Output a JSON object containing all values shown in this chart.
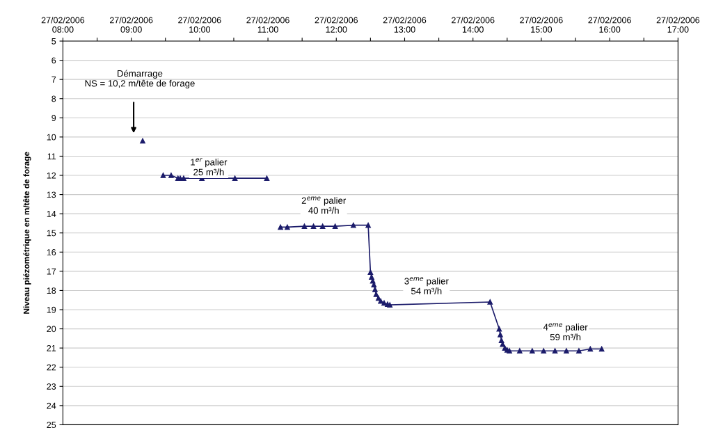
{
  "chart_data": {
    "type": "line",
    "ylabel": "Niveau piézométrique en m/tête de forage",
    "x": [
      "2006-02-27T09:10",
      "2006-02-27T09:20",
      "2006-02-27T09:28",
      "2006-02-27T09:35",
      "2006-02-27T09:41",
      "2006-02-27T09:43",
      "2006-02-27T09:46",
      "2006-02-27T10:02",
      "2006-02-27T10:31",
      "2006-02-27T10:59",
      "2006-02-27T11:05",
      "2006-02-27T11:11",
      "2006-02-27T11:17",
      "2006-02-27T11:32",
      "2006-02-27T11:40",
      "2006-02-27T11:48",
      "2006-02-27T11:59",
      "2006-02-27T12:15",
      "2006-02-27T12:28",
      "2006-02-27T12:30",
      "2006-02-27T12:31",
      "2006-02-27T12:32",
      "2006-02-27T12:33",
      "2006-02-27T12:34",
      "2006-02-27T12:35",
      "2006-02-27T12:37",
      "2006-02-27T12:39",
      "2006-02-27T12:42",
      "2006-02-27T12:45",
      "2006-02-27T12:47",
      "2006-02-27T14:15",
      "2006-02-27T14:23",
      "2006-02-27T14:24",
      "2006-02-27T14:25",
      "2006-02-27T14:26",
      "2006-02-27T14:28",
      "2006-02-27T14:30",
      "2006-02-27T14:32",
      "2006-02-27T14:41",
      "2006-02-27T14:52",
      "2006-02-27T15:02",
      "2006-02-27T15:12",
      "2006-02-27T15:22",
      "2006-02-27T15:33",
      "2006-02-27T15:43",
      "2006-02-27T15:53"
    ],
    "series": [
      {
        "color": "#1c1c6b",
        "values": [
          10.2,
          null,
          12.0,
          12.0,
          12.15,
          12.15,
          12.15,
          12.15,
          12.15,
          12.15,
          null,
          14.7,
          14.7,
          14.65,
          14.65,
          14.65,
          14.65,
          14.6,
          14.6,
          17.05,
          17.3,
          17.5,
          17.7,
          17.95,
          18.2,
          18.4,
          18.55,
          18.65,
          18.72,
          18.75,
          18.6,
          20.0,
          20.3,
          20.6,
          20.8,
          21.0,
          21.1,
          21.15,
          21.15,
          21.15,
          21.15,
          21.15,
          21.15,
          21.15,
          21.05,
          21.05
        ]
      }
    ],
    "xlim": [
      "2006-02-27T08:00",
      "2006-02-27T17:00"
    ],
    "xticks": [
      {
        "value": "2006-02-27T08:00",
        "label": "27/02/2006\n08:00"
      },
      {
        "value": "2006-02-27T08:30",
        "label": null
      },
      {
        "value": "2006-02-27T09:00",
        "label": "27/02/2006\n09:00"
      },
      {
        "value": "2006-02-27T09:30",
        "label": null
      },
      {
        "value": "2006-02-27T10:00",
        "label": "27/02/2006\n10:00"
      },
      {
        "value": "2006-02-27T10:30",
        "label": null
      },
      {
        "value": "2006-02-27T11:00",
        "label": "27/02/2006\n11:00"
      },
      {
        "value": "2006-02-27T11:30",
        "label": null
      },
      {
        "value": "2006-02-27T12:00",
        "label": "27/02/2006\n12:00"
      },
      {
        "value": "2006-02-27T12:30",
        "label": null
      },
      {
        "value": "2006-02-27T13:00",
        "label": "27/02/2006\n13:00"
      },
      {
        "value": "2006-02-27T13:30",
        "label": null
      },
      {
        "value": "2006-02-27T14:00",
        "label": "27/02/2006\n14:00"
      },
      {
        "value": "2006-02-27T14:30",
        "label": null
      },
      {
        "value": "2006-02-27T15:00",
        "label": "27/02/2006\n15:00"
      },
      {
        "value": "2006-02-27T15:30",
        "label": null
      },
      {
        "value": "2006-02-27T16:00",
        "label": "27/02/2006\n16:00"
      },
      {
        "value": "2006-02-27T16:30",
        "label": null
      },
      {
        "value": "2006-02-27T17:00",
        "label": "27/02/2006\n17:00"
      }
    ],
    "ylim": [
      25,
      5
    ],
    "yticks": [
      5,
      6,
      7,
      8,
      9,
      10,
      11,
      12,
      13,
      14,
      15,
      16,
      17,
      18,
      19,
      20,
      21,
      22,
      23,
      24,
      25
    ],
    "grid": "y",
    "marker": "triangle",
    "line_style": "solid",
    "legend": false,
    "annotations": [
      "Démarrage\nNS = 10,2 m/tête de forage",
      "1$^{er}$ palier\n25 m³/h",
      "2$^{eme}$ palier\n40 m³/h",
      "3$^{eme}$ palier\n54 m³/h",
      "4$^{eme}$ palier\n59 m³/h"
    ]
  }
}
